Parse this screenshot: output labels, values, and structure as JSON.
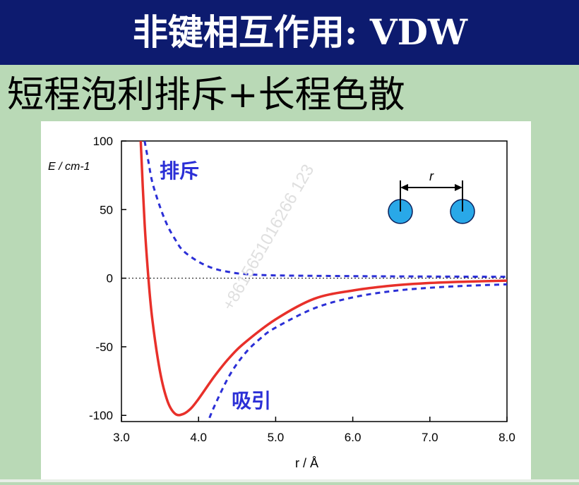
{
  "slide": {
    "title": "非键相互作用: VDW",
    "subtitle": "短程泡利排斥+长程色散"
  },
  "watermark": "+8615651016266 123",
  "chart_data": {
    "type": "line",
    "xlabel": "r / Å",
    "ylabel": "E / cm-1",
    "xlim": [
      3.0,
      8.0
    ],
    "ylim": [
      -110,
      100
    ],
    "xticks": [
      3.0,
      4.0,
      5.0,
      6.0,
      7.0,
      8.0
    ],
    "xtick_labels": [
      "3.0",
      "4.0",
      "5.0",
      "6.0",
      "7.0",
      "8.0"
    ],
    "yticks": [
      100,
      50,
      0,
      -50,
      -100
    ],
    "ytick_labels": [
      "100",
      "50",
      "0",
      "-50",
      "-100"
    ],
    "zero_line": true,
    "series": [
      {
        "color": "#e8302a",
        "style": "solid",
        "x": [
          3.25,
          3.3,
          3.35,
          3.4,
          3.5,
          3.6,
          3.7,
          3.8,
          3.9,
          4.0,
          4.2,
          4.4,
          4.6,
          5.0,
          5.5,
          6.0,
          6.5,
          7.0,
          7.5,
          8.0
        ],
        "y": [
          100,
          40,
          0,
          -30,
          -68,
          -90,
          -99,
          -99,
          -95,
          -88,
          -72,
          -58,
          -47,
          -30,
          -15,
          -9,
          -5.5,
          -3.5,
          -2.5,
          -1.8
        ]
      },
      {
        "color": "#2b2fd6",
        "style": "dashed",
        "x": [
          3.3,
          3.35,
          3.4,
          3.5,
          3.6,
          3.7,
          3.8,
          4.0,
          4.2,
          4.4,
          4.6,
          5.0,
          6.0,
          7.0,
          8.0
        ],
        "y": [
          100,
          85,
          70,
          52,
          38,
          28,
          20,
          12,
          7,
          4.5,
          3,
          2,
          1.5,
          1.2,
          1
        ],
        "label": "排斥"
      },
      {
        "color": "#2b2fd6",
        "style": "dashed",
        "x": [
          4.1,
          4.2,
          4.4,
          4.6,
          4.8,
          5.0,
          5.5,
          6.0,
          6.5,
          7.0,
          7.5,
          8.0
        ],
        "y": [
          -108,
          -94,
          -71,
          -55,
          -44,
          -36,
          -22,
          -14,
          -9.5,
          -7,
          -5.5,
          -4.5
        ],
        "label": "吸引"
      }
    ],
    "inset": {
      "label": "r"
    }
  }
}
